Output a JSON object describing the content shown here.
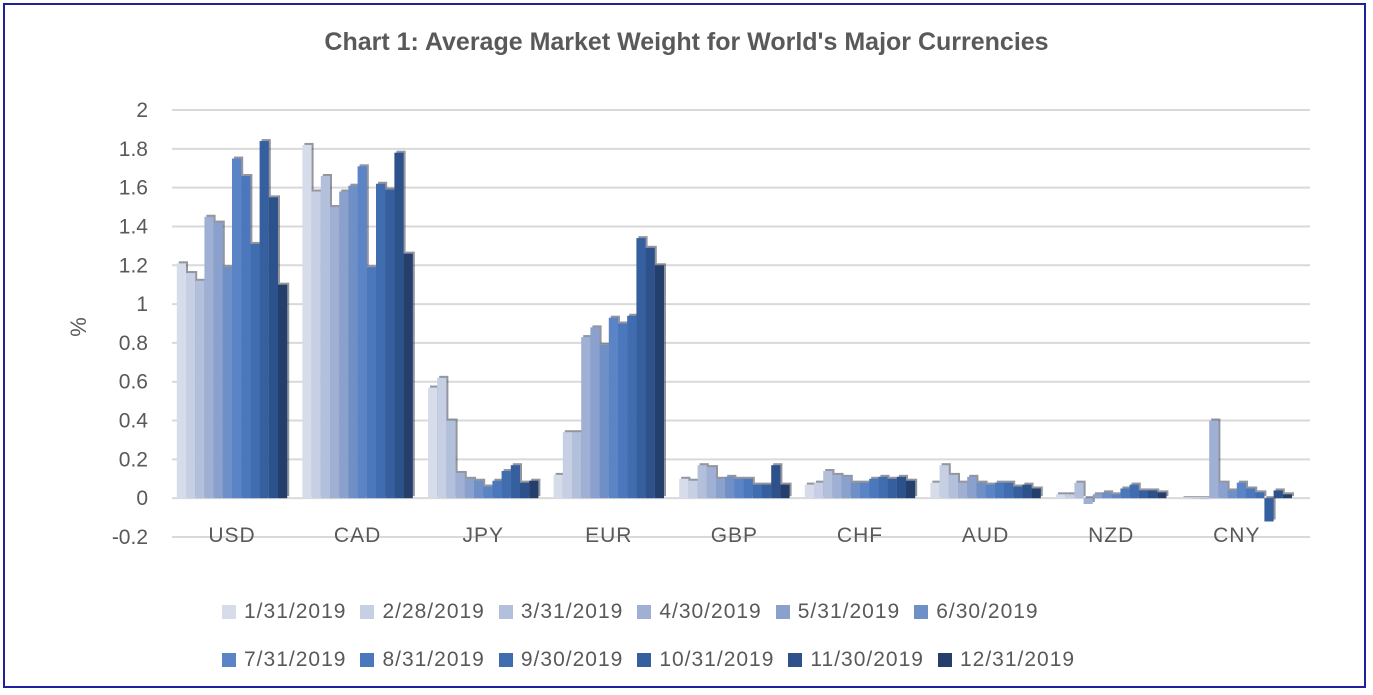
{
  "chart_data": {
    "type": "bar",
    "title": "Chart 1: Average Market Weight for World's Major Currencies",
    "xlabel": "",
    "ylabel": "%",
    "ylim": [
      -0.2,
      2
    ],
    "yticks": [
      "2",
      "1.8",
      "1.6",
      "1.4",
      "1.2",
      "1",
      "0.8",
      "0.6",
      "0.4",
      "0.2",
      "0",
      "-0.2"
    ],
    "grid": true,
    "legend_position": "bottom",
    "categories": [
      "USD",
      "CAD",
      "JPY",
      "EUR",
      "GBP",
      "CHF",
      "AUD",
      "NZD",
      "CNY"
    ],
    "series": [
      {
        "name": "1/31/2019",
        "color": "#d6dcea",
        "values": [
          1.21,
          1.82,
          0.57,
          0.12,
          0.1,
          0.07,
          0.08,
          0.02,
          0.0
        ]
      },
      {
        "name": "2/28/2019",
        "color": "#c6cfe3",
        "values": [
          1.16,
          1.58,
          0.62,
          0.34,
          0.09,
          0.08,
          0.17,
          0.02,
          0.0
        ]
      },
      {
        "name": "3/31/2019",
        "color": "#b3c0dc",
        "values": [
          1.12,
          1.66,
          0.4,
          0.34,
          0.17,
          0.14,
          0.12,
          0.08,
          0.0
        ]
      },
      {
        "name": "4/30/2019",
        "color": "#9fb0d4",
        "values": [
          1.45,
          1.5,
          0.13,
          0.83,
          0.16,
          0.12,
          0.08,
          -0.03,
          0.4
        ]
      },
      {
        "name": "5/31/2019",
        "color": "#8aa1cd",
        "values": [
          1.42,
          1.58,
          0.1,
          0.88,
          0.1,
          0.11,
          0.11,
          0.02,
          0.08
        ]
      },
      {
        "name": "6/30/2019",
        "color": "#6f8fc7",
        "values": [
          1.19,
          1.61,
          0.09,
          0.79,
          0.11,
          0.08,
          0.08,
          0.03,
          0.04
        ]
      },
      {
        "name": "7/31/2019",
        "color": "#5a84c6",
        "values": [
          1.75,
          1.71,
          0.06,
          0.93,
          0.1,
          0.08,
          0.07,
          0.02,
          0.08
        ]
      },
      {
        "name": "8/31/2019",
        "color": "#4b78bd",
        "values": [
          1.66,
          1.19,
          0.09,
          0.9,
          0.1,
          0.1,
          0.08,
          0.05,
          0.05
        ]
      },
      {
        "name": "9/30/2019",
        "color": "#3f6db0",
        "values": [
          1.31,
          1.62,
          0.14,
          0.94,
          0.07,
          0.11,
          0.08,
          0.07,
          0.03
        ]
      },
      {
        "name": "10/31/2019",
        "color": "#355f9e",
        "values": [
          1.84,
          1.59,
          0.17,
          1.34,
          0.07,
          0.1,
          0.06,
          0.04,
          -0.12
        ]
      },
      {
        "name": "11/30/2019",
        "color": "#2d518a",
        "values": [
          1.55,
          1.78,
          0.08,
          1.29,
          0.17,
          0.11,
          0.07,
          0.04,
          0.04
        ]
      },
      {
        "name": "12/31/2019",
        "color": "#243f6c",
        "values": [
          1.1,
          1.26,
          0.09,
          1.2,
          0.07,
          0.09,
          0.05,
          0.03,
          0.02
        ]
      }
    ]
  }
}
